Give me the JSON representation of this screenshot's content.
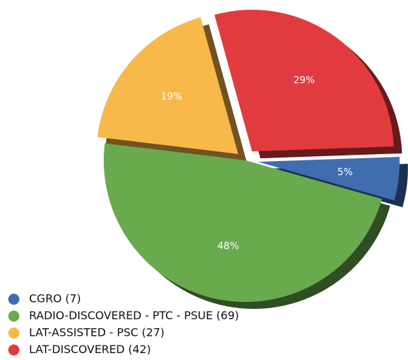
{
  "chart_data": {
    "type": "pie",
    "categories": [
      "CGRO (7)",
      "RADIO-DISCOVERED - PTC - PSUE (69)",
      "LAT-ASSISTED - PSC (27)",
      "LAT-DISCOVERED (42)"
    ],
    "values": [
      5,
      48,
      19,
      29
    ],
    "value_labels": [
      "5%",
      "48%",
      "19%",
      "29%"
    ],
    "colors": [
      "#3f6db0",
      "#6aaa4e",
      "#f8b84a",
      "#e23b3f"
    ],
    "legend": "bottom-left"
  }
}
